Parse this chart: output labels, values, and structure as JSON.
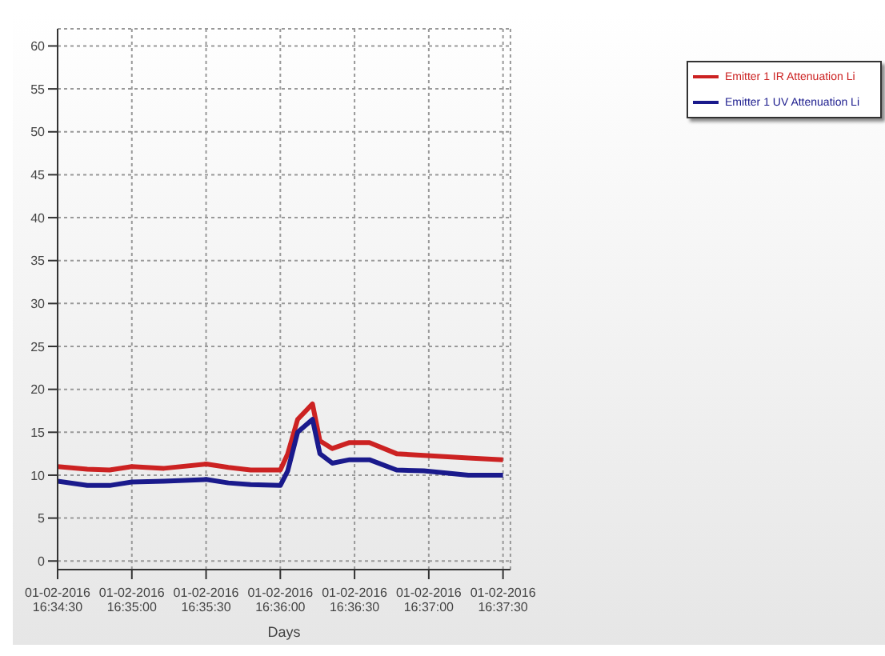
{
  "chart_data": {
    "type": "line",
    "xlabel": "Days",
    "x": [
      "2016-01-02T16:34:30",
      "2016-01-02T16:34:42",
      "2016-01-02T16:34:51",
      "2016-01-02T16:35:00",
      "2016-01-02T16:35:13",
      "2016-01-02T16:35:30",
      "2016-01-02T16:35:39",
      "2016-01-02T16:35:48",
      "2016-01-02T16:36:00",
      "2016-01-02T16:36:03",
      "2016-01-02T16:36:07",
      "2016-01-02T16:36:13",
      "2016-01-02T16:36:16",
      "2016-01-02T16:36:21",
      "2016-01-02T16:36:28",
      "2016-01-02T16:36:36",
      "2016-01-02T16:36:47",
      "2016-01-02T16:36:58",
      "2016-01-02T16:37:16",
      "2016-01-02T16:37:30"
    ],
    "series": [
      {
        "name": "Emitter 1 IR Attenuation Li",
        "color": "#cc2222",
        "values": [
          11,
          10.7,
          10.6,
          11,
          10.8,
          11.3,
          10.9,
          10.6,
          10.6,
          12.5,
          16.5,
          18.3,
          14,
          13.1,
          13.8,
          13.8,
          12.5,
          12.3,
          12,
          11.8
        ]
      },
      {
        "name": "Emitter 1 UV Attenuation Li",
        "color": "#1a1a8c",
        "values": [
          9.3,
          8.8,
          8.8,
          9.2,
          9.3,
          9.5,
          9.1,
          8.9,
          8.8,
          10.5,
          15,
          16.5,
          12.5,
          11.4,
          11.8,
          11.8,
          10.6,
          10.5,
          10,
          10
        ]
      }
    ],
    "xlim": [
      "2016-01-02T16:34:30",
      "2016-01-02T16:37:33"
    ],
    "xticks": [
      {
        "value": "2016-01-02T16:34:30",
        "label": "01-02-2016 16:34:30"
      },
      {
        "value": "2016-01-02T16:35:00",
        "label": "01-02-2016 16:35:00"
      },
      {
        "value": "2016-01-02T16:35:30",
        "label": "01-02-2016 16:35:30"
      },
      {
        "value": "2016-01-02T16:36:00",
        "label": "01-02-2016 16:36:00"
      },
      {
        "value": "2016-01-02T16:36:30",
        "label": "01-02-2016 16:36:30"
      },
      {
        "value": "2016-01-02T16:37:00",
        "label": "01-02-2016 16:37:00"
      },
      {
        "value": "2016-01-02T16:37:30",
        "label": "01-02-2016 16:37:30"
      }
    ],
    "ylim": [
      -1,
      62
    ],
    "yticks": [
      0,
      5,
      10,
      15,
      20,
      25,
      30,
      35,
      40,
      45,
      50,
      55,
      60
    ],
    "grid": true,
    "legend": "top right",
    "marker": "none",
    "line_style": "solid"
  }
}
